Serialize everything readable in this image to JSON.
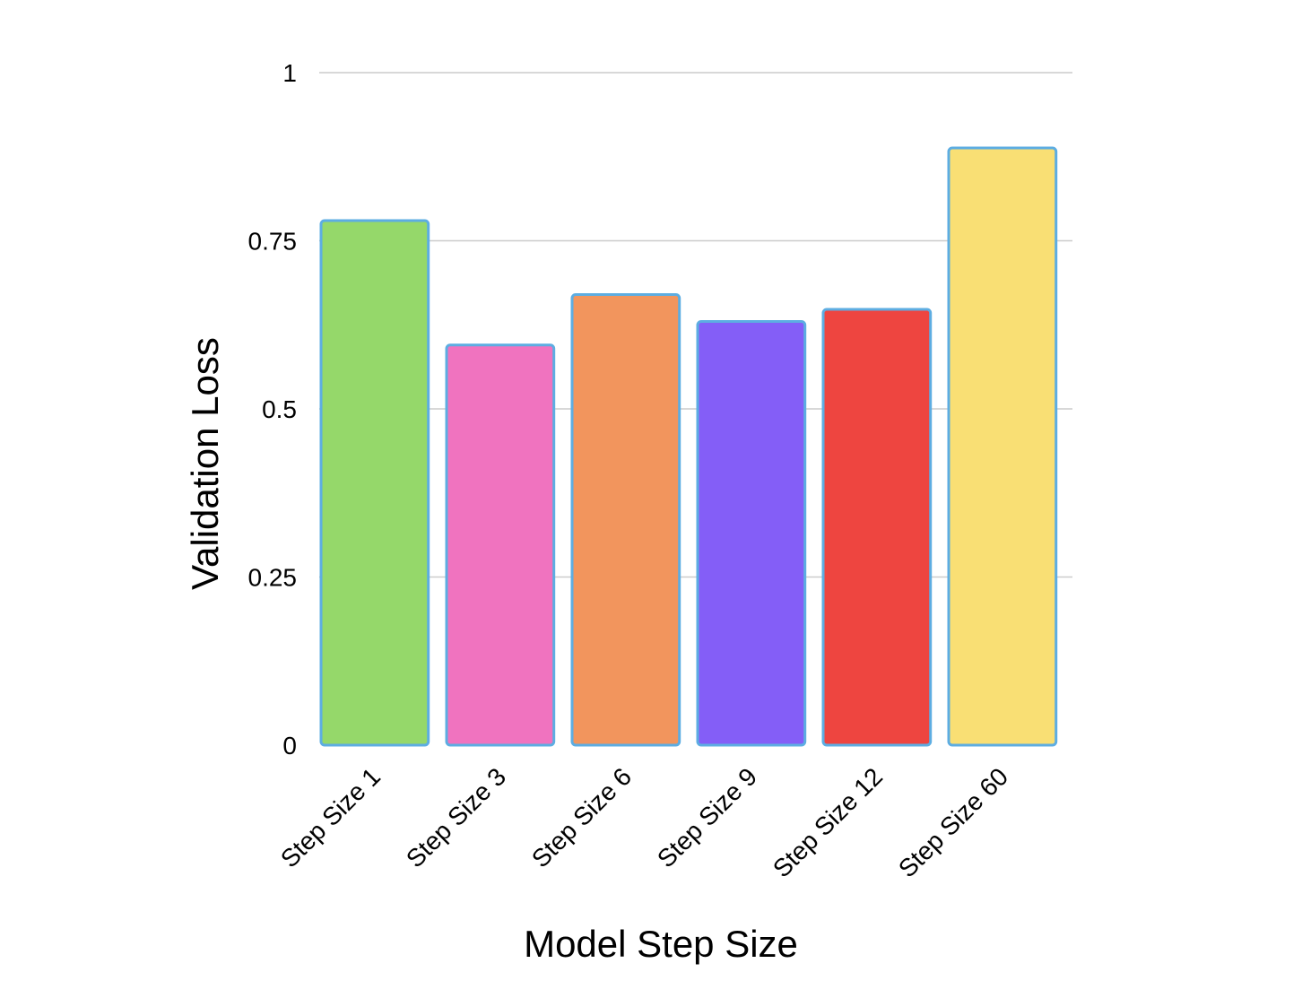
{
  "chart_data": {
    "type": "bar",
    "title": "",
    "xlabel": "Model Step Size",
    "ylabel": "Validation Loss",
    "categories": [
      "Step Size 1",
      "Step Size 3",
      "Step Size 6",
      "Step Size 9",
      "Step Size 12",
      "Step Size 60"
    ],
    "values": [
      0.78,
      0.595,
      0.67,
      0.63,
      0.648,
      0.888
    ],
    "colors": [
      "#95d86a",
      "#f073bf",
      "#f2955d",
      "#845ef7",
      "#ee4540",
      "#f9df74"
    ],
    "bar_outline_color": "#5dade2",
    "ylim": [
      0,
      1
    ],
    "yticks": [
      0,
      0.25,
      0.5,
      0.75,
      1
    ],
    "ytick_labels": [
      "0",
      "0.25",
      "0.5",
      "0.75",
      "1"
    ],
    "grid": true,
    "legend": "none"
  }
}
